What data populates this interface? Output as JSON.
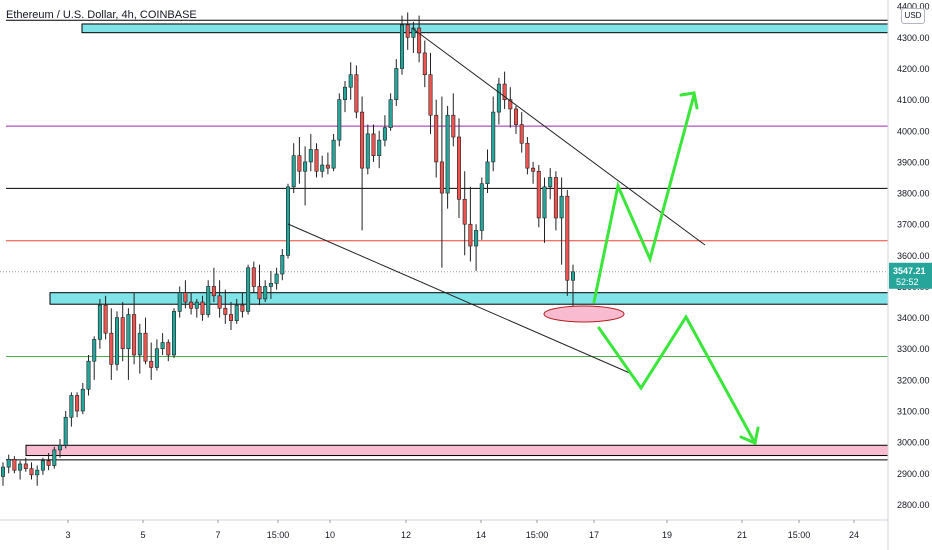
{
  "header": {
    "title": "Ethereum / U.S. Dollar, 4h, COINBASE",
    "currency": "USD"
  },
  "colors": {
    "up": "#26a69a",
    "down": "#ef5350",
    "zone_cyan": "#7fe3e8",
    "zone_pink": "#f8bbd0",
    "arrow": "#39e639",
    "level_purple": "#9c27b0",
    "level_red": "#f44336",
    "level_green": "#4caf50",
    "level_black": "#000000",
    "trendline": "#222222",
    "axis_text": "#131722"
  },
  "chart_data": {
    "type": "candlestick",
    "y_axis": {
      "range": [
        2750,
        4420
      ],
      "ticks": [
        2800,
        2900,
        3000,
        3100,
        3200,
        3300,
        3400,
        3500,
        3600,
        3700,
        3800,
        3900,
        4000,
        4100,
        4200,
        4300,
        4400
      ],
      "tick_labels": [
        "2800.00",
        "2900.00",
        "3000.00",
        "3100.00",
        "3200.00",
        "3300.00",
        "3400.00",
        "3500.00",
        "3600.00",
        "3700.00",
        "3800.00",
        "3900.00",
        "4000.00",
        "4100.00",
        "4200.00",
        "4300.00",
        "4400.00"
      ]
    },
    "x_axis": {
      "tick_labels": [
        "3",
        "5",
        "7",
        "15:00",
        "10",
        "12",
        "14",
        "15:00",
        "17",
        "19",
        "21",
        "15:00",
        "24"
      ]
    },
    "last_price": {
      "value": 3547.21,
      "label": "3547.21",
      "countdown": "52:52"
    },
    "series": [
      {
        "kind": "ohlc",
        "values": [
          [
            2890,
            2935,
            2860,
            2920
          ],
          [
            2920,
            2960,
            2900,
            2945
          ],
          [
            2945,
            2955,
            2900,
            2910
          ],
          [
            2910,
            2940,
            2880,
            2930
          ],
          [
            2930,
            2950,
            2905,
            2915
          ],
          [
            2915,
            2935,
            2880,
            2895
          ],
          [
            2895,
            2925,
            2860,
            2910
          ],
          [
            2910,
            2950,
            2895,
            2940
          ],
          [
            2940,
            2965,
            2910,
            2925
          ],
          [
            2925,
            2985,
            2915,
            2975
          ],
          [
            2975,
            3010,
            2950,
            2990
          ],
          [
            2990,
            3100,
            2980,
            3080
          ],
          [
            3080,
            3160,
            3050,
            3150
          ],
          [
            3150,
            3160,
            3080,
            3100
          ],
          [
            3100,
            3190,
            3090,
            3170
          ],
          [
            3170,
            3280,
            3150,
            3260
          ],
          [
            3260,
            3340,
            3200,
            3330
          ],
          [
            3330,
            3460,
            3300,
            3440
          ],
          [
            3440,
            3470,
            3330,
            3350
          ],
          [
            3350,
            3430,
            3200,
            3250
          ],
          [
            3250,
            3420,
            3230,
            3400
          ],
          [
            3400,
            3450,
            3260,
            3300
          ],
          [
            3300,
            3430,
            3200,
            3410
          ],
          [
            3410,
            3480,
            3250,
            3280
          ],
          [
            3280,
            3380,
            3220,
            3350
          ],
          [
            3350,
            3400,
            3250,
            3260
          ],
          [
            3260,
            3320,
            3200,
            3240
          ],
          [
            3240,
            3330,
            3230,
            3300
          ],
          [
            3300,
            3350,
            3280,
            3320
          ],
          [
            3320,
            3330,
            3260,
            3280
          ],
          [
            3280,
            3430,
            3270,
            3420
          ],
          [
            3420,
            3500,
            3400,
            3480
          ],
          [
            3480,
            3520,
            3430,
            3450
          ],
          [
            3450,
            3480,
            3410,
            3430
          ],
          [
            3430,
            3460,
            3400,
            3450
          ],
          [
            3450,
            3470,
            3390,
            3410
          ],
          [
            3410,
            3520,
            3400,
            3500
          ],
          [
            3500,
            3560,
            3450,
            3470
          ],
          [
            3470,
            3520,
            3400,
            3430
          ],
          [
            3430,
            3490,
            3380,
            3410
          ],
          [
            3410,
            3450,
            3360,
            3390
          ],
          [
            3390,
            3460,
            3380,
            3440
          ],
          [
            3440,
            3480,
            3400,
            3420
          ],
          [
            3420,
            3570,
            3410,
            3560
          ],
          [
            3560,
            3580,
            3480,
            3500
          ],
          [
            3500,
            3570,
            3440,
            3460
          ],
          [
            3460,
            3520,
            3450,
            3500
          ],
          [
            3500,
            3550,
            3460,
            3510
          ],
          [
            3510,
            3560,
            3490,
            3540
          ],
          [
            3540,
            3620,
            3520,
            3600
          ],
          [
            3600,
            3830,
            3590,
            3820
          ],
          [
            3820,
            3960,
            3800,
            3920
          ],
          [
            3920,
            3980,
            3830,
            3870
          ],
          [
            3870,
            3950,
            3760,
            3900
          ],
          [
            3900,
            3990,
            3870,
            3940
          ],
          [
            3940,
            3960,
            3850,
            3870
          ],
          [
            3870,
            3920,
            3850,
            3890
          ],
          [
            3890,
            3930,
            3860,
            3880
          ],
          [
            3880,
            3990,
            3870,
            3970
          ],
          [
            3970,
            4120,
            3950,
            4100
          ],
          [
            4100,
            4160,
            4060,
            4140
          ],
          [
            4140,
            4220,
            4100,
            4180
          ],
          [
            4180,
            4210,
            4040,
            4060
          ],
          [
            4060,
            4110,
            3680,
            3880
          ],
          [
            3880,
            4020,
            3860,
            3990
          ],
          [
            3990,
            4020,
            3900,
            3920
          ],
          [
            3920,
            4000,
            3880,
            3970
          ],
          [
            3970,
            4050,
            3950,
            4010
          ],
          [
            4010,
            4120,
            4000,
            4100
          ],
          [
            4100,
            4230,
            4080,
            4200
          ],
          [
            4200,
            4370,
            4180,
            4340
          ],
          [
            4340,
            4380,
            4260,
            4300
          ],
          [
            4300,
            4350,
            4250,
            4330
          ],
          [
            4330,
            4370,
            4220,
            4250
          ],
          [
            4250,
            4290,
            4140,
            4180
          ],
          [
            4180,
            4250,
            3990,
            4050
          ],
          [
            4050,
            4100,
            3850,
            3900
          ],
          [
            3900,
            4110,
            3560,
            3800
          ],
          [
            3800,
            4080,
            3750,
            4050
          ],
          [
            4050,
            4120,
            3950,
            3980
          ],
          [
            3980,
            4040,
            3720,
            3780
          ],
          [
            3780,
            3870,
            3600,
            3700
          ],
          [
            3700,
            3820,
            3580,
            3630
          ],
          [
            3630,
            3700,
            3550,
            3680
          ],
          [
            3680,
            3850,
            3650,
            3830
          ],
          [
            3830,
            3940,
            3800,
            3900
          ],
          [
            3900,
            4110,
            3870,
            4060
          ],
          [
            4060,
            4170,
            4020,
            4150
          ],
          [
            4150,
            4190,
            4070,
            4100
          ],
          [
            4100,
            4140,
            4010,
            4070
          ],
          [
            4070,
            4080,
            3990,
            4020
          ],
          [
            4020,
            4060,
            3930,
            3960
          ],
          [
            3960,
            3980,
            3860,
            3880
          ],
          [
            3880,
            3900,
            3830,
            3870
          ],
          [
            3870,
            3890,
            3690,
            3720
          ],
          [
            3720,
            3850,
            3640,
            3820
          ],
          [
            3820,
            3880,
            3780,
            3850
          ],
          [
            3850,
            3870,
            3680,
            3720
          ],
          [
            3720,
            3850,
            3570,
            3790
          ],
          [
            3790,
            3810,
            3470,
            3520
          ],
          [
            3520,
            3570,
            3400,
            3547
          ]
        ]
      }
    ],
    "annotations": {
      "horizontal_levels": [
        {
          "price": 4355,
          "color": "level_black"
        },
        {
          "price": 4015,
          "color": "level_purple"
        },
        {
          "price": 3815,
          "color": "level_black"
        },
        {
          "price": 3647,
          "color": "level_red"
        },
        {
          "price": 3275,
          "color": "level_green"
        },
        {
          "price": 2943,
          "color": "level_black"
        }
      ],
      "zones": [
        {
          "from": 4315,
          "to": 4343,
          "color": "zone_cyan"
        },
        {
          "from": 3443,
          "to": 3480,
          "color": "zone_cyan"
        },
        {
          "from": 2957,
          "to": 2990,
          "color": "zone_pink"
        }
      ]
    }
  }
}
